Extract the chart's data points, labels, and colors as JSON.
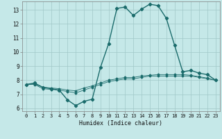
{
  "title": "",
  "xlabel": "Humidex (Indice chaleur)",
  "ylabel": "",
  "bg_color": "#c5e8e8",
  "grid_color": "#a0c8c8",
  "line_color": "#1a6b6b",
  "marker_color": "#1a6b6b",
  "xlim": [
    -0.5,
    23.5
  ],
  "ylim": [
    5.8,
    13.6
  ],
  "yticks": [
    6,
    7,
    8,
    9,
    10,
    11,
    12,
    13
  ],
  "xticks": [
    0,
    1,
    2,
    3,
    4,
    5,
    6,
    7,
    8,
    9,
    10,
    11,
    12,
    13,
    14,
    15,
    16,
    17,
    18,
    19,
    20,
    21,
    22,
    23
  ],
  "series1_x": [
    0,
    1,
    2,
    3,
    4,
    5,
    6,
    7,
    8,
    9,
    10,
    11,
    12,
    13,
    14,
    15,
    16,
    17,
    18,
    19,
    20,
    21,
    22,
    23
  ],
  "series1_y": [
    7.7,
    7.8,
    7.5,
    7.4,
    7.3,
    6.6,
    6.2,
    6.5,
    6.65,
    8.9,
    10.6,
    13.1,
    13.2,
    12.6,
    13.05,
    13.4,
    13.3,
    12.4,
    10.5,
    8.6,
    8.7,
    8.5,
    8.4,
    8.0
  ],
  "series2_x": [
    0,
    1,
    2,
    3,
    4,
    5,
    6,
    7,
    8,
    9,
    10,
    11,
    12,
    13,
    14,
    15,
    16,
    17,
    18,
    19,
    20,
    21,
    22,
    23
  ],
  "series2_y": [
    7.7,
    7.7,
    7.4,
    7.35,
    7.3,
    7.2,
    7.1,
    7.3,
    7.5,
    7.7,
    7.9,
    8.0,
    8.1,
    8.1,
    8.2,
    8.3,
    8.3,
    8.3,
    8.3,
    8.3,
    8.3,
    8.2,
    8.1,
    8.0
  ],
  "series3_x": [
    0,
    1,
    2,
    3,
    4,
    5,
    6,
    7,
    8,
    9,
    10,
    11,
    12,
    13,
    14,
    15,
    16,
    17,
    18,
    19,
    20,
    21,
    22,
    23
  ],
  "series3_y": [
    7.7,
    7.75,
    7.5,
    7.45,
    7.4,
    7.3,
    7.25,
    7.45,
    7.6,
    7.8,
    8.0,
    8.1,
    8.2,
    8.2,
    8.3,
    8.35,
    8.4,
    8.4,
    8.4,
    8.4,
    8.35,
    8.25,
    8.15,
    8.0
  ]
}
